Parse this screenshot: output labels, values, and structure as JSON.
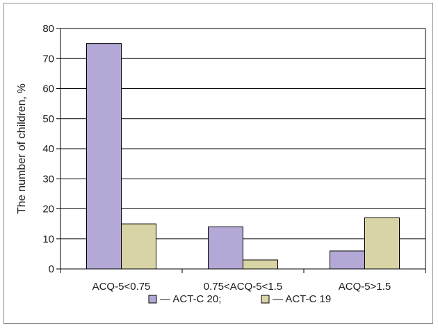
{
  "chart_data": {
    "type": "bar",
    "title": "",
    "xlabel": "",
    "ylabel": "The number of children, %",
    "ylim": [
      0,
      80
    ],
    "yticks": [
      0,
      10,
      20,
      30,
      40,
      50,
      60,
      70,
      80
    ],
    "grid": true,
    "legend_position": "bottom",
    "categories": [
      "ACQ-5<0.75",
      "0.75<ACQ-5<1.5",
      "ACQ-5>1.5"
    ],
    "series": [
      {
        "name": "— ACT-C  20;",
        "color": "#b3a8d6",
        "values": [
          75,
          14,
          6
        ]
      },
      {
        "name": "— ACT-C  19",
        "color": "#d9d4a5",
        "values": [
          15,
          3,
          17
        ]
      }
    ]
  }
}
